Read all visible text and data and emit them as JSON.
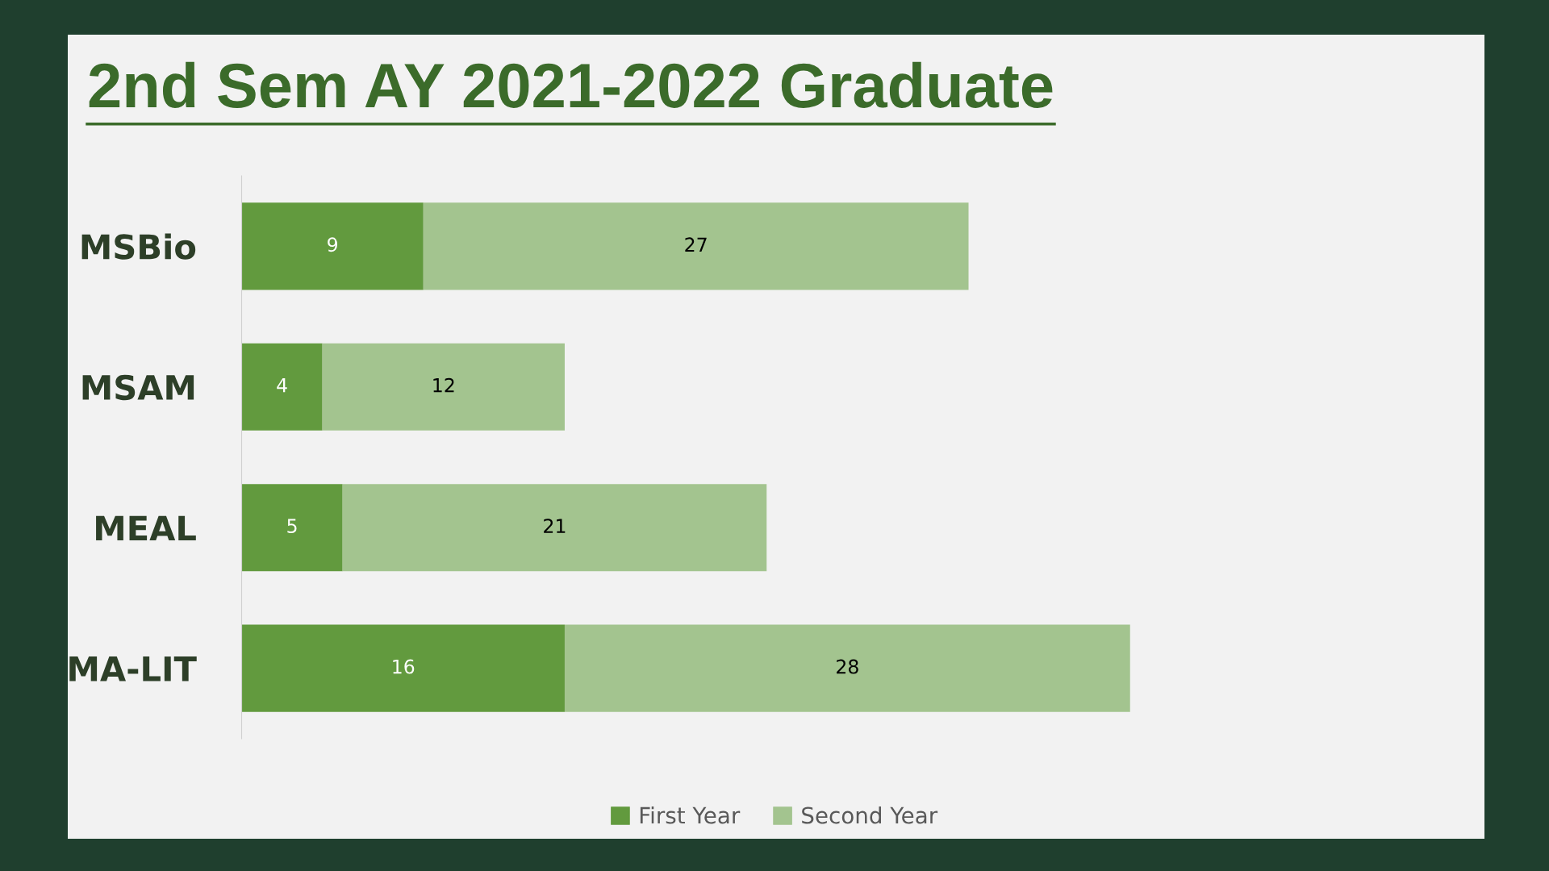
{
  "chart_data": {
    "type": "bar",
    "orientation": "horizontal",
    "stacked": true,
    "title": "2nd Sem AY 2021-2022 Graduate",
    "categories": [
      "MSBio",
      "MSAM",
      "MEAL",
      "MA-LIT"
    ],
    "series": [
      {
        "name": "First Year",
        "color": "#629a3e",
        "values": [
          9,
          4,
          5,
          16
        ]
      },
      {
        "name": "Second Year",
        "color": "#a3c48f",
        "values": [
          27,
          12,
          21,
          28
        ]
      }
    ],
    "data_labels": true,
    "legend": "bottom",
    "grid": false
  }
}
